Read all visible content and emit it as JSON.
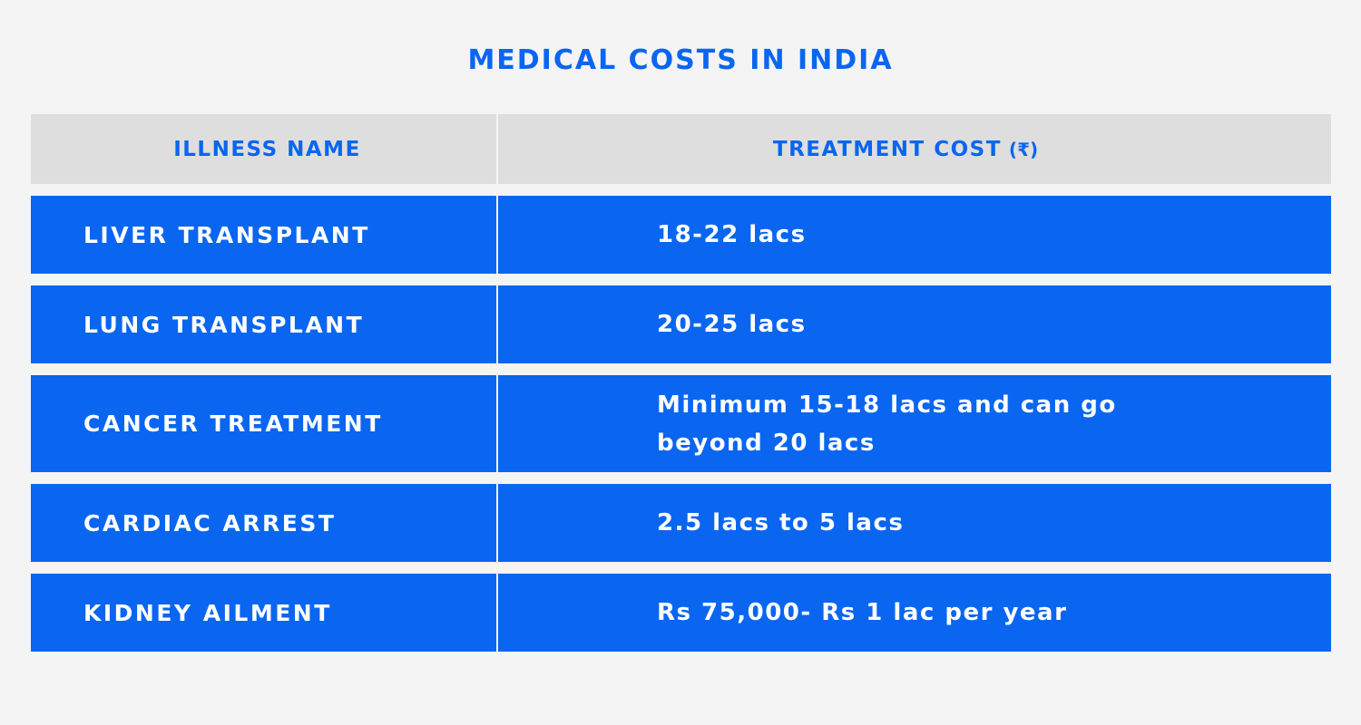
{
  "title": "MEDICAL COSTS IN INDIA",
  "table": {
    "headers": {
      "illness": "ILLNESS NAME",
      "cost": "TREATMENT COST",
      "cost_unit": "(₹)"
    },
    "rows": [
      {
        "illness": "LIVER TRANSPLANT",
        "cost": "18-22 lacs"
      },
      {
        "illness": "LUNG TRANSPLANT",
        "cost": "20-25 lacs"
      },
      {
        "illness": "CANCER TREATMENT",
        "cost": "Minimum 15-18 lacs and can go beyond 20 lacs"
      },
      {
        "illness": "CARDIAC ARREST",
        "cost": "2.5 lacs to 5 lacs"
      },
      {
        "illness": "KIDNEY AILMENT",
        "cost": "Rs 75,000- Rs 1 lac per year"
      }
    ]
  },
  "colors": {
    "accent": "#0a66f0",
    "header_bg": "#dedede",
    "page_bg": "#f4f4f4",
    "row_text": "#ffffff"
  }
}
